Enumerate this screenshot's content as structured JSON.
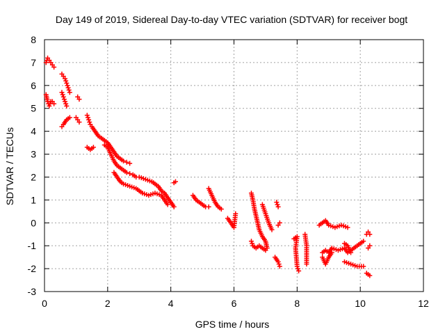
{
  "chart_data": {
    "type": "scatter",
    "title": "Day 149 of 2019, Sidereal Day-to-day VTEC variation (SDTVAR) for receiver bogt",
    "xlabel": "GPS time / hours",
    "ylabel": "SDTVAR / TECUs",
    "xlim": [
      0,
      12
    ],
    "ylim": [
      -3,
      8
    ],
    "xticks": [
      0,
      2,
      4,
      6,
      8,
      10,
      12
    ],
    "yticks": [
      -3,
      -2,
      -1,
      0,
      1,
      2,
      3,
      4,
      5,
      6,
      7,
      8
    ],
    "grid": true,
    "marker": "+",
    "series": [
      {
        "name": "SDTVAR",
        "color": "#ff0000",
        "segments": [
          [
            [
              0.05,
              7.0
            ],
            [
              0.1,
              7.2
            ],
            [
              0.15,
              7.1
            ],
            [
              0.2,
              7.0
            ],
            [
              0.25,
              6.9
            ],
            [
              0.3,
              6.8
            ]
          ],
          [
            [
              0.05,
              5.6
            ],
            [
              0.1,
              5.3
            ],
            [
              0.15,
              5.1
            ],
            [
              0.2,
              5.3
            ],
            [
              0.25,
              5.3
            ],
            [
              0.3,
              5.2
            ]
          ],
          [
            [
              0.55,
              6.5
            ],
            [
              0.6,
              6.4
            ],
            [
              0.65,
              6.3
            ],
            [
              0.7,
              6.1
            ],
            [
              0.75,
              5.9
            ],
            [
              0.8,
              5.7
            ]
          ],
          [
            [
              0.55,
              5.7
            ],
            [
              0.6,
              5.5
            ],
            [
              0.65,
              5.3
            ],
            [
              0.7,
              5.1
            ]
          ],
          [
            [
              0.55,
              4.2
            ],
            [
              0.6,
              4.3
            ],
            [
              0.7,
              4.5
            ],
            [
              0.8,
              4.6
            ]
          ],
          [
            [
              1.05,
              5.5
            ],
            [
              1.1,
              5.4
            ]
          ],
          [
            [
              1.0,
              4.6
            ],
            [
              1.05,
              4.5
            ],
            [
              1.1,
              4.4
            ]
          ],
          [
            [
              1.35,
              4.7
            ],
            [
              1.4,
              4.5
            ],
            [
              1.45,
              4.3
            ],
            [
              1.5,
              4.2
            ],
            [
              1.6,
              4.0
            ],
            [
              1.7,
              3.8
            ],
            [
              1.8,
              3.7
            ],
            [
              1.9,
              3.6
            ],
            [
              2.0,
              3.5
            ],
            [
              2.1,
              3.3
            ],
            [
              2.2,
              3.1
            ],
            [
              2.3,
              2.9
            ],
            [
              2.4,
              2.8
            ],
            [
              2.5,
              2.7
            ],
            [
              2.6,
              2.65
            ],
            [
              2.7,
              2.6
            ]
          ],
          [
            [
              1.35,
              3.3
            ],
            [
              1.45,
              3.2
            ],
            [
              1.55,
              3.3
            ]
          ],
          [
            [
              1.9,
              3.4
            ],
            [
              2.0,
              3.3
            ],
            [
              2.1,
              3.0
            ],
            [
              2.2,
              2.7
            ],
            [
              2.3,
              2.5
            ],
            [
              2.4,
              2.4
            ],
            [
              2.5,
              2.3
            ],
            [
              2.6,
              2.2
            ],
            [
              2.7,
              2.15
            ],
            [
              2.8,
              2.1
            ],
            [
              2.9,
              2.0
            ],
            [
              3.0,
              2.0
            ],
            [
              3.2,
              1.9
            ],
            [
              3.4,
              1.8
            ],
            [
              3.6,
              1.6
            ],
            [
              3.7,
              1.4
            ],
            [
              3.8,
              1.3
            ],
            [
              3.9,
              1.1
            ],
            [
              4.0,
              0.9
            ],
            [
              4.1,
              0.7
            ]
          ],
          [
            [
              2.2,
              2.2
            ],
            [
              2.3,
              2.0
            ],
            [
              2.4,
              1.8
            ],
            [
              2.5,
              1.7
            ],
            [
              2.7,
              1.6
            ],
            [
              2.9,
              1.5
            ],
            [
              3.1,
              1.3
            ],
            [
              3.3,
              1.2
            ],
            [
              3.5,
              1.3
            ],
            [
              3.7,
              1.2
            ],
            [
              3.8,
              1.0
            ],
            [
              3.9,
              0.8
            ]
          ],
          [
            [
              4.1,
              1.75
            ],
            [
              4.15,
              1.8
            ]
          ],
          [
            [
              4.7,
              1.2
            ],
            [
              4.8,
              1.0
            ],
            [
              4.9,
              0.9
            ],
            [
              5.0,
              0.8
            ],
            [
              5.1,
              0.7
            ],
            [
              5.2,
              0.7
            ]
          ],
          [
            [
              5.2,
              1.5
            ],
            [
              5.3,
              1.2
            ],
            [
              5.4,
              0.9
            ],
            [
              5.5,
              0.7
            ],
            [
              5.6,
              0.6
            ]
          ],
          [
            [
              5.8,
              0.2
            ],
            [
              5.9,
              0.0
            ],
            [
              6.0,
              -0.2
            ],
            [
              6.05,
              0.4
            ]
          ],
          [
            [
              6.55,
              1.3
            ],
            [
              6.6,
              1.0
            ],
            [
              6.65,
              0.6
            ],
            [
              6.7,
              0.3
            ],
            [
              6.75,
              0.0
            ],
            [
              6.8,
              -0.3
            ],
            [
              6.9,
              -0.6
            ],
            [
              7.0,
              -0.8
            ],
            [
              7.05,
              -1.1
            ]
          ],
          [
            [
              6.55,
              -0.8
            ],
            [
              6.6,
              -1.0
            ],
            [
              6.7,
              -1.1
            ],
            [
              6.8,
              -1.0
            ],
            [
              6.9,
              -1.1
            ],
            [
              7.0,
              -1.2
            ]
          ],
          [
            [
              6.9,
              0.8
            ],
            [
              7.0,
              0.4
            ],
            [
              7.1,
              0.0
            ],
            [
              7.2,
              -0.3
            ]
          ],
          [
            [
              7.3,
              -1.5
            ],
            [
              7.4,
              -1.7
            ],
            [
              7.45,
              -1.9
            ]
          ],
          [
            [
              7.35,
              0.9
            ],
            [
              7.4,
              0.7
            ]
          ],
          [
            [
              7.4,
              -0.1
            ],
            [
              7.45,
              0.0
            ]
          ],
          [
            [
              7.9,
              -0.7
            ],
            [
              8.0,
              -0.6
            ],
            [
              7.95,
              -1.1
            ],
            [
              8.0,
              -1.9
            ],
            [
              8.05,
              -2.1
            ]
          ],
          [
            [
              8.25,
              -0.5
            ],
            [
              8.3,
              -1.0
            ],
            [
              8.3,
              -1.8
            ]
          ],
          [
            [
              8.7,
              -0.1
            ],
            [
              8.8,
              0.0
            ],
            [
              8.9,
              0.1
            ],
            [
              9.0,
              -0.1
            ],
            [
              9.2,
              -0.2
            ],
            [
              9.4,
              -0.1
            ],
            [
              9.6,
              -0.2
            ]
          ],
          [
            [
              8.8,
              -1.3
            ],
            [
              8.9,
              -1.2
            ],
            [
              9.0,
              -1.3
            ],
            [
              9.1,
              -1.1
            ],
            [
              9.3,
              -1.2
            ],
            [
              9.5,
              -1.1
            ],
            [
              9.6,
              -1.3
            ],
            [
              9.8,
              -1.1
            ],
            [
              10.0,
              -0.9
            ],
            [
              10.1,
              -0.8
            ]
          ],
          [
            [
              8.8,
              -1.5
            ],
            [
              8.9,
              -1.8
            ],
            [
              9.0,
              -1.5
            ],
            [
              9.1,
              -1.3
            ]
          ],
          [
            [
              9.5,
              -0.9
            ],
            [
              9.6,
              -1.0
            ],
            [
              9.7,
              -1.3
            ]
          ],
          [
            [
              9.5,
              -1.7
            ],
            [
              9.7,
              -1.8
            ],
            [
              9.9,
              -1.9
            ],
            [
              10.1,
              -1.9
            ]
          ],
          [
            [
              10.2,
              -0.5
            ],
            [
              10.25,
              -0.4
            ],
            [
              10.3,
              -0.5
            ]
          ],
          [
            [
              10.25,
              -1.1
            ],
            [
              10.3,
              -1.0
            ]
          ],
          [
            [
              10.2,
              -2.2
            ],
            [
              10.3,
              -2.3
            ]
          ]
        ]
      }
    ]
  }
}
